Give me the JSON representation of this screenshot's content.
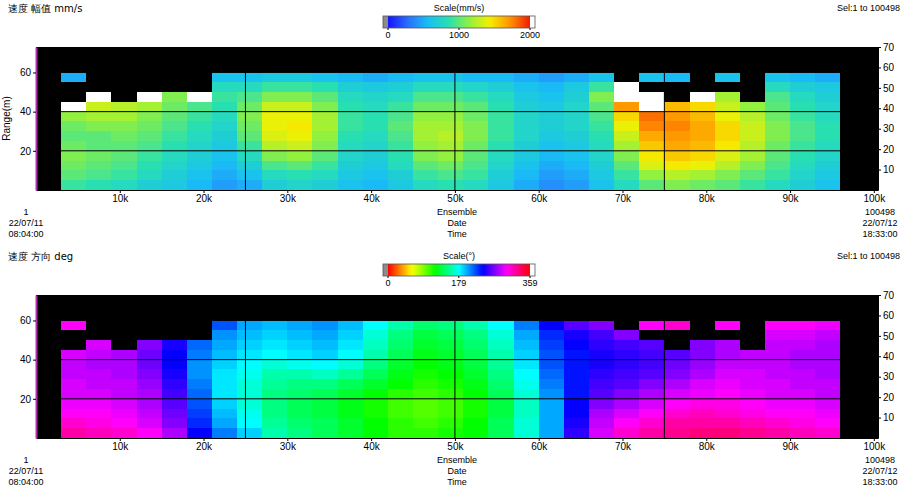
{
  "chart_data": [
    {
      "type": "heatmap",
      "title": "速度 幅值 mm/s",
      "ylabel": "Range(m)",
      "selection": "Sel:1 to 100498",
      "colorbar_title": "Scale(mm/s)",
      "clim": [
        0,
        2000
      ],
      "cticks": [
        0,
        1000,
        2000
      ],
      "xlim": [
        1,
        100498
      ],
      "xticks": [
        {
          "value": 10000,
          "label": "10k"
        },
        {
          "value": 20000,
          "label": "20k"
        },
        {
          "value": 30000,
          "label": "30k"
        },
        {
          "value": 40000,
          "label": "40k"
        },
        {
          "value": 50000,
          "label": "50k"
        },
        {
          "value": 60000,
          "label": "60k"
        },
        {
          "value": 70000,
          "label": "70k"
        },
        {
          "value": 80000,
          "label": "80k"
        },
        {
          "value": 90000,
          "label": "90k"
        },
        {
          "value": 100000,
          "label": "100k"
        }
      ],
      "ylim": [
        0,
        73
      ],
      "yticks": [
        20,
        40,
        60
      ],
      "y2lim": [
        0,
        70
      ],
      "y2ticks": [
        10,
        20,
        30,
        40,
        50,
        60,
        70
      ],
      "grid": true,
      "xgrid": [
        25000,
        50000,
        75000
      ],
      "annotations": {
        "start": [
          "1",
          "22/07/11",
          "08:04:00"
        ],
        "center": [
          "Ensemble",
          "Date",
          "Time"
        ],
        "end": [
          "100498",
          "22/07/12",
          "18:33:00"
        ]
      },
      "x_bins": [
        3000,
        6000,
        9000,
        12000,
        15000,
        18000,
        21000,
        24000,
        27000,
        30000,
        33000,
        36000,
        39000,
        42000,
        45000,
        48000,
        51000,
        54000,
        57000,
        60000,
        63000,
        66000,
        69000,
        72000,
        75000,
        78000,
        81000,
        84000,
        87000,
        90000,
        93000,
        96000
      ],
      "y_bins": [
        0,
        5,
        10,
        15,
        20,
        25,
        30,
        35,
        40,
        45,
        50,
        55,
        60
      ],
      "z": [
        [
          900,
          850,
          800,
          700,
          650,
          550,
          450,
          500,
          700,
          750,
          700,
          600,
          550,
          650,
          800,
          850,
          800,
          650,
          500,
          400,
          450,
          600,
          800,
          1000,
          1100,
          1050,
          1000,
          900,
          800,
          700,
          600
        ],
        [
          1000,
          950,
          900,
          800,
          700,
          600,
          500,
          600,
          800,
          850,
          800,
          650,
          600,
          700,
          900,
          950,
          900,
          700,
          550,
          450,
          500,
          650,
          900,
          1150,
          1250,
          1200,
          1100,
          1000,
          900,
          750,
          650
        ],
        [
          1050,
          1000,
          950,
          850,
          750,
          650,
          550,
          700,
          950,
          1000,
          900,
          700,
          650,
          800,
          1000,
          1050,
          950,
          750,
          600,
          500,
          550,
          700,
          1000,
          1350,
          1450,
          1400,
          1250,
          1100,
          950,
          800,
          700
        ],
        [
          1100,
          1050,
          1000,
          900,
          800,
          700,
          600,
          800,
          1100,
          1150,
          1000,
          750,
          700,
          850,
          1100,
          1150,
          1000,
          800,
          650,
          550,
          600,
          750,
          1100,
          1450,
          1550,
          1500,
          1350,
          1200,
          1000,
          850,
          750
        ],
        [
          1050,
          1000,
          1000,
          950,
          850,
          750,
          650,
          900,
          1250,
          1300,
          1100,
          800,
          750,
          900,
          1150,
          1200,
          1050,
          850,
          700,
          600,
          650,
          800,
          1200,
          1550,
          1650,
          1600,
          1450,
          1250,
          1050,
          900,
          800
        ],
        [
          1000,
          1000,
          1050,
          1000,
          900,
          800,
          700,
          1000,
          1350,
          1400,
          1150,
          850,
          800,
          950,
          1200,
          1250,
          1100,
          900,
          750,
          650,
          700,
          850,
          1300,
          1650,
          1700,
          1650,
          1500,
          1300,
          1100,
          950,
          850
        ],
        [
          1050,
          1100,
          1100,
          1050,
          950,
          850,
          750,
          1050,
          1400,
          1450,
          1200,
          900,
          850,
          1000,
          1200,
          1200,
          1100,
          900,
          750,
          700,
          750,
          900,
          1400,
          1750,
          1750,
          1650,
          1500,
          1300,
          1100,
          950,
          850
        ],
        [
          1150,
          1200,
          1200,
          1100,
          1000,
          900,
          800,
          1100,
          1400,
          1400,
          1200,
          900,
          850,
          950,
          1150,
          1150,
          1050,
          900,
          750,
          700,
          750,
          950,
          1500,
          1800,
          1700,
          1600,
          1400,
          1250,
          1050,
          900,
          800
        ],
        [
          2100,
          1300,
          1250,
          1200,
          1050,
          950,
          850,
          1050,
          1300,
          1300,
          1100,
          850,
          800,
          900,
          1050,
          1050,
          1000,
          850,
          700,
          650,
          750,
          1000,
          1700,
          2100,
          1600,
          1500,
          1300,
          1150,
          1000,
          850,
          750
        ],
        [
          null,
          2300,
          null,
          2200,
          1100,
          2100,
          900,
          950,
          1100,
          1100,
          1000,
          800,
          750,
          800,
          950,
          950,
          900,
          800,
          650,
          600,
          700,
          1100,
          2300,
          2400,
          null,
          2200,
          1200,
          null,
          950,
          800,
          700
        ],
        [
          null,
          null,
          null,
          null,
          null,
          null,
          800,
          800,
          900,
          900,
          850,
          700,
          650,
          700,
          800,
          800,
          750,
          700,
          600,
          550,
          650,
          900,
          2400,
          null,
          null,
          null,
          null,
          null,
          800,
          700,
          650
        ],
        [
          500,
          null,
          null,
          null,
          null,
          null,
          600,
          600,
          650,
          650,
          600,
          550,
          500,
          550,
          600,
          600,
          550,
          550,
          500,
          450,
          500,
          600,
          null,
          600,
          550,
          null,
          600,
          null,
          600,
          550,
          500
        ]
      ]
    },
    {
      "type": "heatmap",
      "title": "速度 方向 deg",
      "selection": "Sel:1 to 100498",
      "colorbar_title": "Scale(°)",
      "clim": [
        0,
        359
      ],
      "cticks": [
        0,
        179,
        359
      ],
      "xlim": [
        1,
        100498
      ],
      "xticks": [
        {
          "value": 10000,
          "label": "10k"
        },
        {
          "value": 20000,
          "label": "20k"
        },
        {
          "value": 30000,
          "label": "30k"
        },
        {
          "value": 40000,
          "label": "40k"
        },
        {
          "value": 50000,
          "label": "50k"
        },
        {
          "value": 60000,
          "label": "60k"
        },
        {
          "value": 70000,
          "label": "70k"
        },
        {
          "value": 80000,
          "label": "80k"
        },
        {
          "value": 90000,
          "label": "90k"
        },
        {
          "value": 100000,
          "label": "100k"
        }
      ],
      "ylim": [
        0,
        73
      ],
      "yticks": [
        20,
        40,
        60
      ],
      "y2lim": [
        0,
        70
      ],
      "y2ticks": [
        10,
        20,
        30,
        40,
        50,
        60,
        70
      ],
      "grid": true,
      "xgrid": [
        25000,
        50000,
        75000
      ],
      "annotations": {
        "start": [
          "1",
          "22/07/11",
          "08:04:00"
        ],
        "center": [
          "Ensemble",
          "Date",
          "Time"
        ],
        "end": [
          "100498",
          "22/07/12",
          "18:33:00"
        ]
      },
      "x_bins": [
        3000,
        6000,
        9000,
        12000,
        15000,
        18000,
        21000,
        24000,
        27000,
        30000,
        33000,
        36000,
        39000,
        42000,
        45000,
        48000,
        51000,
        54000,
        57000,
        60000,
        63000,
        66000,
        69000,
        72000,
        75000,
        78000,
        81000,
        84000,
        87000,
        90000,
        93000,
        96000
      ],
      "y_bins": [
        0,
        5,
        10,
        15,
        20,
        25,
        30,
        35,
        40,
        45,
        50,
        55,
        60
      ],
      "z": [
        [
          320,
          315,
          310,
          300,
          280,
          240,
          210,
          190,
          160,
          150,
          140,
          130,
          120,
          110,
          110,
          115,
          120,
          140,
          170,
          200,
          250,
          290,
          310,
          320,
          325,
          330,
          330,
          325,
          320,
          315,
          310
        ],
        [
          310,
          305,
          300,
          290,
          270,
          230,
          200,
          180,
          155,
          145,
          140,
          130,
          120,
          110,
          105,
          110,
          120,
          140,
          170,
          200,
          245,
          285,
          300,
          310,
          320,
          320,
          320,
          315,
          310,
          305,
          300
        ],
        [
          300,
          300,
          295,
          285,
          265,
          225,
          195,
          175,
          150,
          140,
          135,
          125,
          115,
          105,
          100,
          105,
          115,
          135,
          165,
          200,
          240,
          280,
          290,
          300,
          310,
          315,
          310,
          305,
          300,
          300,
          295
        ],
        [
          295,
          295,
          290,
          280,
          260,
          220,
          190,
          170,
          150,
          140,
          135,
          125,
          115,
          105,
          100,
          105,
          115,
          135,
          165,
          200,
          240,
          270,
          280,
          290,
          300,
          305,
          305,
          300,
          295,
          295,
          290
        ],
        [
          290,
          290,
          285,
          280,
          255,
          215,
          185,
          170,
          150,
          145,
          140,
          130,
          120,
          110,
          105,
          110,
          120,
          140,
          170,
          205,
          235,
          260,
          270,
          280,
          290,
          295,
          300,
          295,
          290,
          290,
          285
        ],
        [
          290,
          285,
          285,
          275,
          250,
          210,
          185,
          170,
          155,
          150,
          150,
          140,
          130,
          120,
          110,
          115,
          125,
          145,
          175,
          210,
          235,
          255,
          260,
          270,
          280,
          290,
          295,
          290,
          290,
          285,
          285
        ],
        [
          285,
          285,
          280,
          270,
          245,
          205,
          185,
          175,
          160,
          160,
          165,
          155,
          140,
          125,
          115,
          120,
          130,
          150,
          180,
          215,
          235,
          250,
          255,
          260,
          270,
          280,
          290,
          290,
          285,
          285,
          280
        ],
        [
          285,
          280,
          280,
          265,
          240,
          205,
          190,
          180,
          170,
          175,
          180,
          170,
          150,
          130,
          120,
          125,
          135,
          155,
          185,
          220,
          235,
          245,
          250,
          255,
          265,
          275,
          285,
          285,
          285,
          280,
          280
        ],
        [
          290,
          285,
          280,
          265,
          240,
          210,
          195,
          185,
          180,
          185,
          190,
          180,
          160,
          140,
          125,
          130,
          140,
          160,
          190,
          220,
          235,
          245,
          250,
          255,
          260,
          270,
          280,
          285,
          285,
          280,
          280
        ],
        [
          null,
          290,
          null,
          270,
          245,
          215,
          200,
          190,
          185,
          190,
          195,
          185,
          165,
          145,
          130,
          135,
          145,
          165,
          195,
          225,
          240,
          250,
          255,
          260,
          null,
          270,
          280,
          null,
          285,
          285,
          280
        ],
        [
          null,
          null,
          null,
          null,
          null,
          null,
          205,
          195,
          190,
          195,
          200,
          190,
          170,
          150,
          135,
          140,
          150,
          170,
          200,
          230,
          245,
          255,
          270,
          null,
          null,
          null,
          null,
          null,
          290,
          290,
          285
        ],
        [
          300,
          null,
          null,
          null,
          null,
          null,
          220,
          200,
          195,
          200,
          205,
          195,
          180,
          160,
          145,
          150,
          160,
          180,
          210,
          240,
          260,
          270,
          null,
          300,
          310,
          null,
          300,
          null,
          300,
          300,
          295
        ]
      ]
    }
  ]
}
